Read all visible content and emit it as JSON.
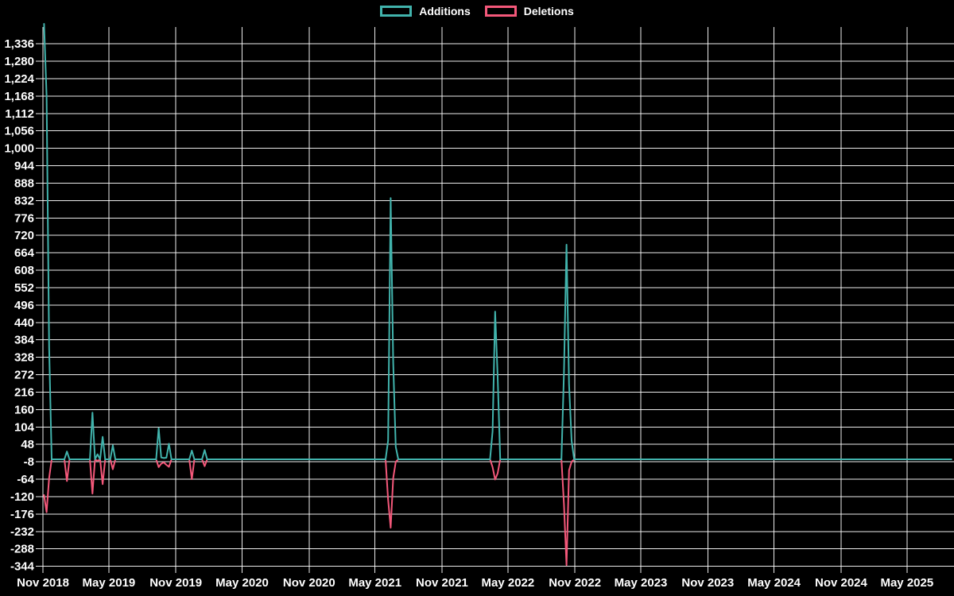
{
  "page": {
    "background": "#000000",
    "grid_color": "#ffffff",
    "text_color": "#ffffff"
  },
  "legend": {
    "position": "top-center",
    "items": [
      {
        "label": "Additions",
        "color": "#41b3ac"
      },
      {
        "label": "Deletions",
        "color": "#f4587a"
      }
    ]
  },
  "chart_data": {
    "type": "line",
    "title": "",
    "xlabel": "",
    "ylabel": "",
    "grid": true,
    "legend_position": "top-center",
    "x_axis": {
      "tick_labels": [
        "Nov 2018",
        "May 2019",
        "Nov 2019",
        "May 2020",
        "Nov 2020",
        "May 2021",
        "Nov 2021",
        "May 2022",
        "Nov 2022",
        "May 2023",
        "Nov 2023",
        "May 2024",
        "Nov 2024",
        "May 2025"
      ],
      "tick_dates": [
        "2018-11-01",
        "2019-05-01",
        "2019-11-01",
        "2020-05-01",
        "2020-11-01",
        "2021-05-01",
        "2021-11-01",
        "2022-05-01",
        "2022-11-01",
        "2023-05-01",
        "2023-11-01",
        "2024-05-01",
        "2024-11-01",
        "2025-05-01"
      ]
    },
    "y_axis": {
      "tick_values": [
        1336,
        1280,
        1224,
        1168,
        1112,
        1056,
        1000,
        944,
        888,
        832,
        776,
        720,
        664,
        608,
        552,
        496,
        440,
        384,
        328,
        272,
        216,
        160,
        104,
        48,
        -8,
        -64,
        -120,
        -176,
        -232,
        -288,
        -344
      ],
      "tick_labels": [
        "1,336",
        "1,280",
        "1,224",
        "1,168",
        "1,112",
        "1,056",
        "1,000",
        "944",
        "888",
        "832",
        "776",
        "720",
        "664",
        "608",
        "552",
        "496",
        "440",
        "384",
        "328",
        "272",
        "216",
        "160",
        "104",
        "48",
        "-8",
        "-64",
        "-120",
        "-176",
        "-232",
        "-288",
        "-344"
      ],
      "min": -355,
      "max": 1390
    },
    "series": [
      {
        "name": "Additions",
        "color": "#41b3ac",
        "key": "additions"
      },
      {
        "name": "Deletions",
        "color": "#f4587a",
        "key": "deletions"
      }
    ],
    "weekly_range": {
      "start": "2018-11-04",
      "end": "2025-08-31",
      "interval_days": 7,
      "baseline_additions": 0,
      "baseline_deletions": 0
    },
    "nonzero_weeks": [
      {
        "date": "2018-11-04",
        "additions": 1400,
        "deletions": -115
      },
      {
        "date": "2018-11-11",
        "additions": 1170,
        "deletions": -170
      },
      {
        "date": "2018-11-18",
        "additions": 360,
        "deletions": -60
      },
      {
        "date": "2019-01-06",
        "additions": 25,
        "deletions": -70
      },
      {
        "date": "2019-03-17",
        "additions": 150,
        "deletions": -110
      },
      {
        "date": "2019-03-31",
        "additions": 16,
        "deletions": -5
      },
      {
        "date": "2019-04-14",
        "additions": 72,
        "deletions": -80
      },
      {
        "date": "2019-05-12",
        "additions": 45,
        "deletions": -32
      },
      {
        "date": "2019-09-15",
        "additions": 100,
        "deletions": -25
      },
      {
        "date": "2019-09-22",
        "additions": 6,
        "deletions": -14
      },
      {
        "date": "2019-09-29",
        "additions": 4,
        "deletions": -10
      },
      {
        "date": "2019-10-06",
        "additions": 5,
        "deletions": -18
      },
      {
        "date": "2019-10-13",
        "additions": 50,
        "deletions": -24
      },
      {
        "date": "2019-12-15",
        "additions": 28,
        "deletions": -64
      },
      {
        "date": "2020-01-19",
        "additions": 30,
        "deletions": -22
      },
      {
        "date": "2021-06-06",
        "additions": 60,
        "deletions": -130
      },
      {
        "date": "2021-06-13",
        "additions": 840,
        "deletions": -220
      },
      {
        "date": "2021-06-20",
        "additions": 310,
        "deletions": -60
      },
      {
        "date": "2021-06-27",
        "additions": 40,
        "deletions": -8
      },
      {
        "date": "2022-03-20",
        "additions": 90,
        "deletions": -25
      },
      {
        "date": "2022-03-27",
        "additions": 475,
        "deletions": -65
      },
      {
        "date": "2022-04-03",
        "additions": 265,
        "deletions": -45
      },
      {
        "date": "2022-10-02",
        "additions": 280,
        "deletions": -145
      },
      {
        "date": "2022-10-09",
        "additions": 690,
        "deletions": -340
      },
      {
        "date": "2022-10-16",
        "additions": 240,
        "deletions": -35
      },
      {
        "date": "2022-10-23",
        "additions": 60,
        "deletions": -8
      }
    ]
  }
}
